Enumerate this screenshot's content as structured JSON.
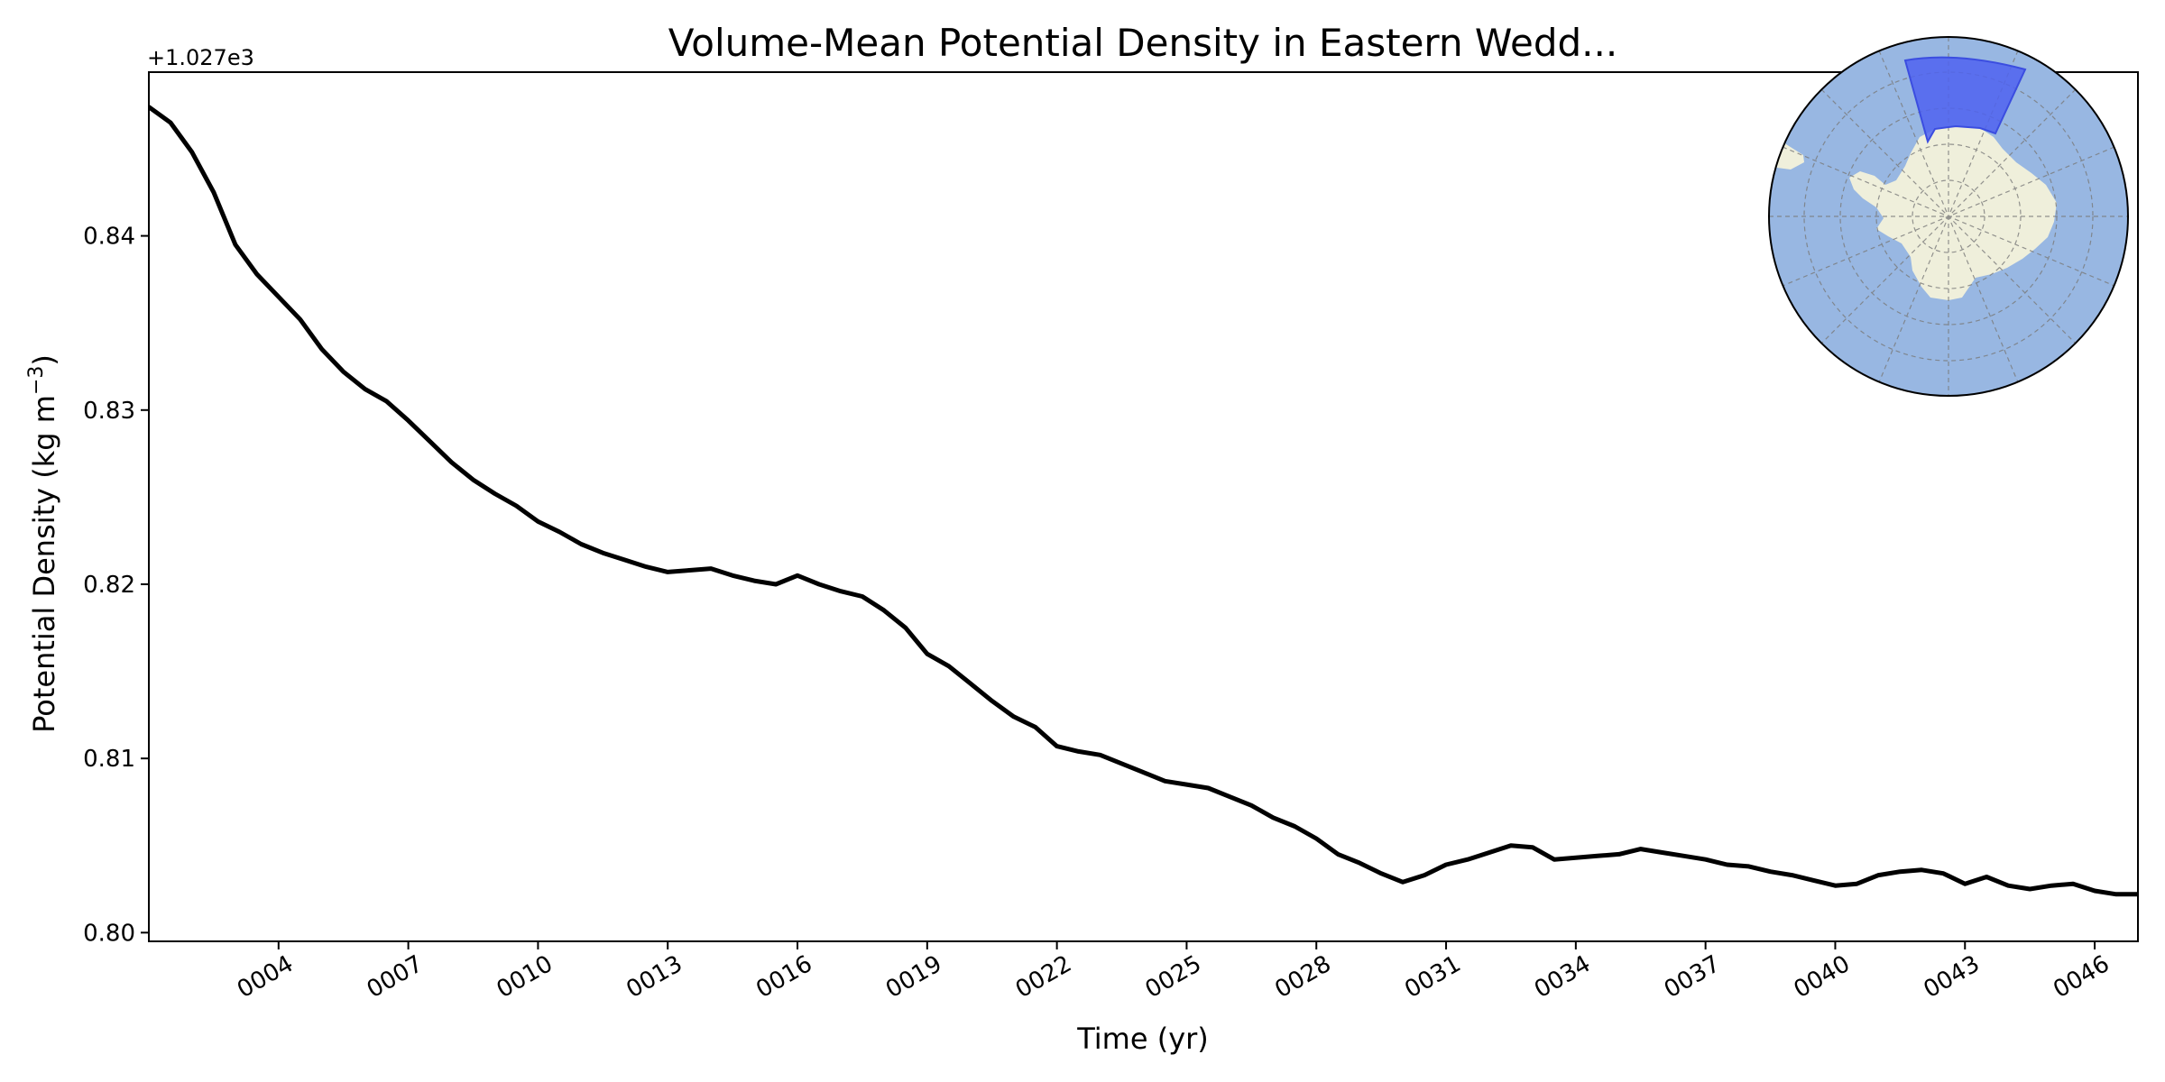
{
  "chart_data": {
    "type": "line",
    "title": "Volume-Mean Potential Density in Eastern Wedd...",
    "xlabel": "Time (yr)",
    "ylabel_main": "Potential Density (kg m",
    "ylabel_sup": "−3",
    "ylabel_close": ")",
    "y_offset_label": "+1.027e3",
    "xlim": [
      1,
      47
    ],
    "ylim": [
      0.7995,
      0.8494
    ],
    "x_ticks": [
      4,
      7,
      10,
      13,
      16,
      19,
      22,
      25,
      28,
      31,
      34,
      37,
      40,
      43,
      46
    ],
    "x_tick_labels": [
      "0004",
      "0007",
      "0010",
      "0013",
      "0016",
      "0019",
      "0022",
      "0025",
      "0028",
      "0031",
      "0034",
      "0037",
      "0040",
      "0043",
      "0046"
    ],
    "y_ticks": [
      0.8,
      0.81,
      0.82,
      0.83,
      0.84
    ],
    "y_tick_labels": [
      "0.80",
      "0.81",
      "0.82",
      "0.83",
      "0.84"
    ],
    "grid": false,
    "line_color": "#000000",
    "series": [
      {
        "x": [
          1.0,
          1.5,
          2.0,
          2.5,
          3.0,
          3.5,
          4.0,
          4.5,
          5.0,
          5.5,
          6.0,
          6.5,
          7.0,
          7.5,
          8.0,
          8.5,
          9.0,
          9.5,
          10.0,
          10.5,
          11.0,
          11.5,
          12.0,
          12.5,
          13.0,
          13.5,
          14.0,
          14.5,
          15.0,
          15.5,
          16.0,
          16.5,
          17.0,
          17.5,
          18.0,
          18.5,
          19.0,
          19.5,
          20.0,
          20.5,
          21.0,
          21.5,
          22.0,
          22.5,
          23.0,
          23.5,
          24.0,
          24.5,
          25.0,
          25.5,
          26.0,
          26.5,
          27.0,
          27.5,
          28.0,
          28.5,
          29.0,
          29.5,
          30.0,
          30.5,
          31.0,
          31.5,
          32.0,
          32.5,
          33.0,
          33.5,
          34.0,
          34.5,
          35.0,
          35.5,
          36.0,
          36.5,
          37.0,
          37.5,
          38.0,
          38.5,
          39.0,
          39.5,
          40.0,
          40.5,
          41.0,
          41.5,
          42.0,
          42.5,
          43.0,
          43.5,
          44.0,
          44.5,
          45.0,
          45.5,
          46.0,
          46.5,
          47.0
        ],
        "y": [
          0.8474,
          0.8465,
          0.8448,
          0.8425,
          0.8395,
          0.8378,
          0.8365,
          0.8352,
          0.8335,
          0.8322,
          0.8312,
          0.8305,
          0.8294,
          0.8282,
          0.827,
          0.826,
          0.8252,
          0.8245,
          0.8236,
          0.823,
          0.8223,
          0.8218,
          0.8214,
          0.821,
          0.8207,
          0.8208,
          0.8209,
          0.8205,
          0.8202,
          0.82,
          0.8205,
          0.82,
          0.8196,
          0.8193,
          0.8185,
          0.8175,
          0.816,
          0.8153,
          0.8143,
          0.8133,
          0.8124,
          0.8118,
          0.8107,
          0.8104,
          0.8102,
          0.8097,
          0.8092,
          0.8087,
          0.8085,
          0.8083,
          0.8078,
          0.8073,
          0.8066,
          0.8061,
          0.8054,
          0.8045,
          0.804,
          0.8034,
          0.8029,
          0.8033,
          0.8039,
          0.8042,
          0.8046,
          0.805,
          0.8049,
          0.8042,
          0.8043,
          0.8044,
          0.8045,
          0.8048,
          0.8046,
          0.8044,
          0.8042,
          0.8039,
          0.8038,
          0.8035,
          0.8033,
          0.803,
          0.8027,
          0.8028,
          0.8033,
          0.8035,
          0.8036,
          0.8034,
          0.8028,
          0.8032,
          0.8027,
          0.8025,
          0.8027,
          0.8028,
          0.8024,
          0.8022,
          0.8022
        ]
      }
    ],
    "inset_map": {
      "description_type": "south-polar-stereographic-inset",
      "ocean_color": "#98b7e2",
      "land_color": "#efefdb",
      "region_color": "#4f63f0"
    }
  }
}
